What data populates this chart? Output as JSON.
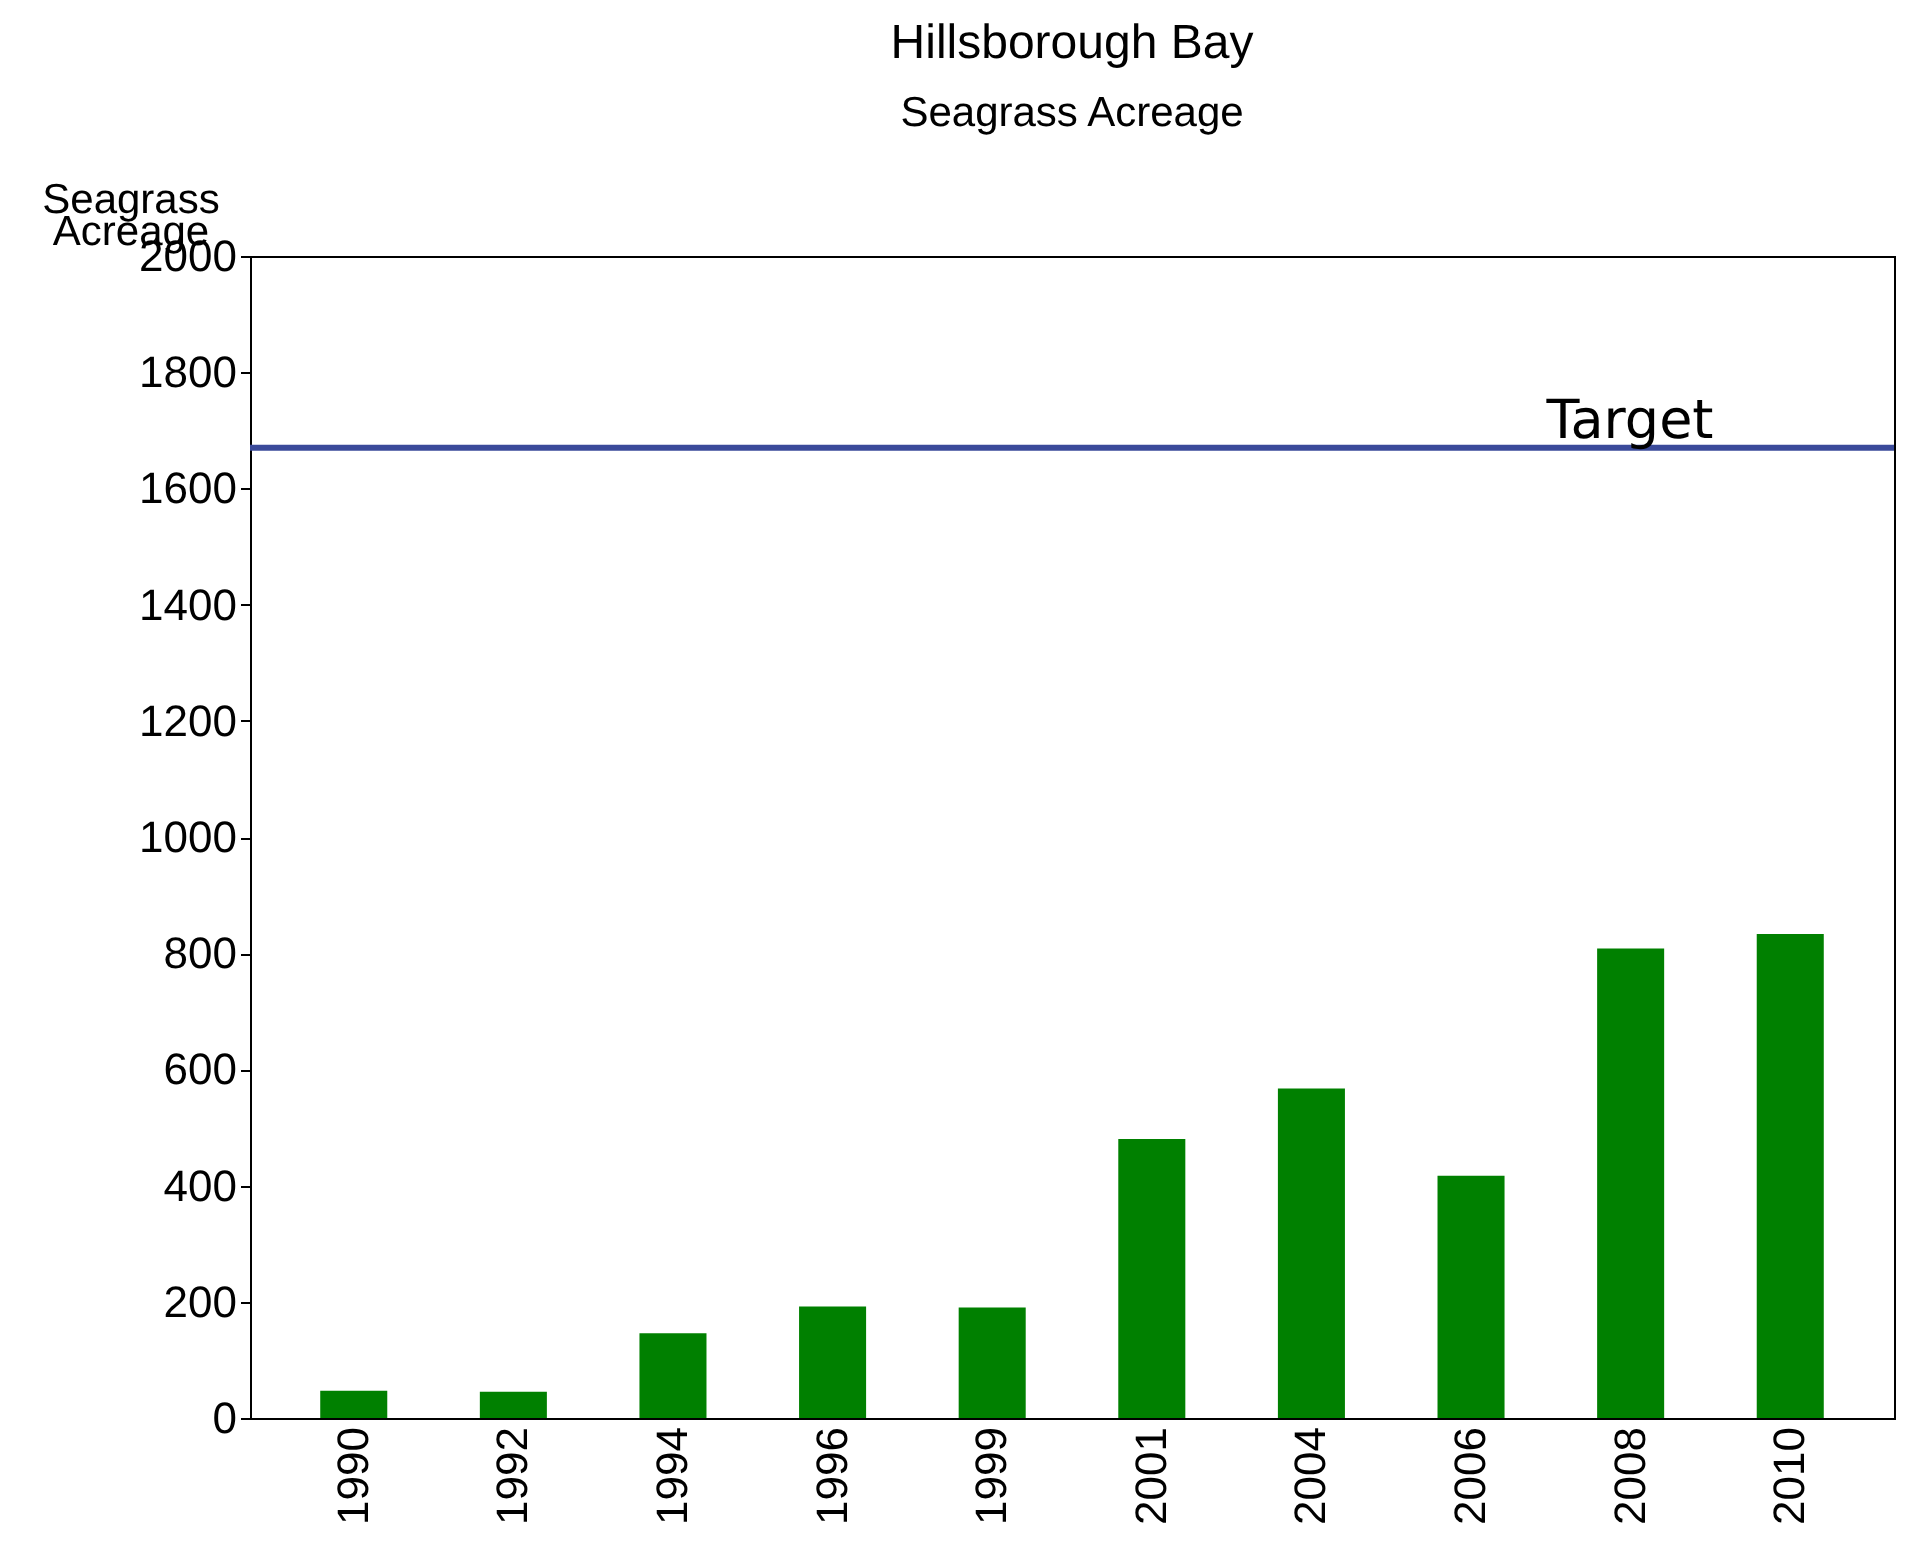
{
  "chart_data": {
    "type": "bar",
    "title": "Hillsborough Bay",
    "subtitle": "Seagrass Acreage",
    "ylabel": "Seagrass Acreage",
    "categories": [
      "1990",
      "1992",
      "1994",
      "1996",
      "1999",
      "2001",
      "2004",
      "2006",
      "2008",
      "2010"
    ],
    "values": [
      47,
      45,
      146,
      192,
      190,
      480,
      567,
      417,
      808,
      833
    ],
    "color": "#008000",
    "ylim": [
      0,
      2000
    ],
    "yticks": [
      0,
      200,
      400,
      600,
      800,
      1000,
      1200,
      1400,
      1600,
      1800,
      2000
    ],
    "ref_lines": [
      {
        "axis": "y",
        "value": 1670,
        "label": "Target",
        "color": "#3a4a9a"
      }
    ],
    "grid": false
  }
}
